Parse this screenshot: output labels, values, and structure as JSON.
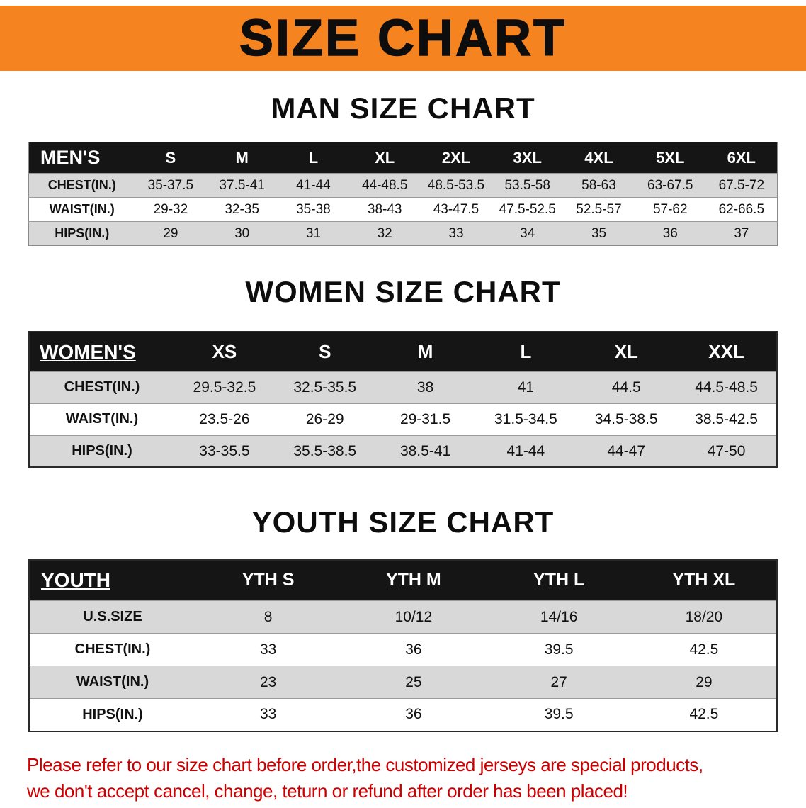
{
  "colors": {
    "accent": "#f5831f",
    "table-head": "#151515",
    "row-gray": "#d8d8d8",
    "disclaimer": "#cc0000"
  },
  "banner": {
    "title": "SIZE CHART"
  },
  "men": {
    "heading": "MAN SIZE CHART",
    "header": [
      "MEN'S",
      "S",
      "M",
      "L",
      "XL",
      "2XL",
      "3XL",
      "4XL",
      "5XL",
      "6XL"
    ],
    "rows": [
      {
        "label": "CHEST(IN.)",
        "values": [
          "35-37.5",
          "37.5-41",
          "41-44",
          "44-48.5",
          "48.5-53.5",
          "53.5-58",
          "58-63",
          "63-67.5",
          "67.5-72"
        ]
      },
      {
        "label": "WAIST(IN.)",
        "values": [
          "29-32",
          "32-35",
          "35-38",
          "38-43",
          "43-47.5",
          "47.5-52.5",
          "52.5-57",
          "57-62",
          "62-66.5"
        ]
      },
      {
        "label": "HIPS(IN.)",
        "values": [
          "29",
          "30",
          "31",
          "32",
          "33",
          "34",
          "35",
          "36",
          "37"
        ]
      }
    ]
  },
  "women": {
    "heading": "WOMEN SIZE CHART",
    "header": [
      "WOMEN'S",
      "XS",
      "S",
      "M",
      "L",
      "XL",
      "XXL"
    ],
    "rows": [
      {
        "label": "CHEST(IN.)",
        "values": [
          "29.5-32.5",
          "32.5-35.5",
          "38",
          "41",
          "44.5",
          "44.5-48.5"
        ]
      },
      {
        "label": "WAIST(IN.)",
        "values": [
          "23.5-26",
          "26-29",
          "29-31.5",
          "31.5-34.5",
          "34.5-38.5",
          "38.5-42.5"
        ]
      },
      {
        "label": "HIPS(IN.)",
        "values": [
          "33-35.5",
          "35.5-38.5",
          "38.5-41",
          "41-44",
          "44-47",
          "47-50"
        ]
      }
    ]
  },
  "youth": {
    "heading": "YOUTH SIZE CHART",
    "header": [
      "YOUTH",
      "YTH S",
      "YTH M",
      "YTH L",
      "YTH XL"
    ],
    "rows": [
      {
        "label": "U.S.SIZE",
        "values": [
          "8",
          "10/12",
          "14/16",
          "18/20"
        ]
      },
      {
        "label": "CHEST(IN.)",
        "values": [
          "33",
          "36",
          "39.5",
          "42.5"
        ]
      },
      {
        "label": "WAIST(IN.)",
        "values": [
          "23",
          "25",
          "27",
          "29"
        ]
      },
      {
        "label": "HIPS(IN.)",
        "values": [
          "33",
          "36",
          "39.5",
          "42.5"
        ]
      }
    ]
  },
  "disclaimer": {
    "line1": "Please refer to our size chart before order,the customized jerseys are special products,",
    "line2": "we don't accept cancel, change, teturn or refund after order has been placed!"
  }
}
